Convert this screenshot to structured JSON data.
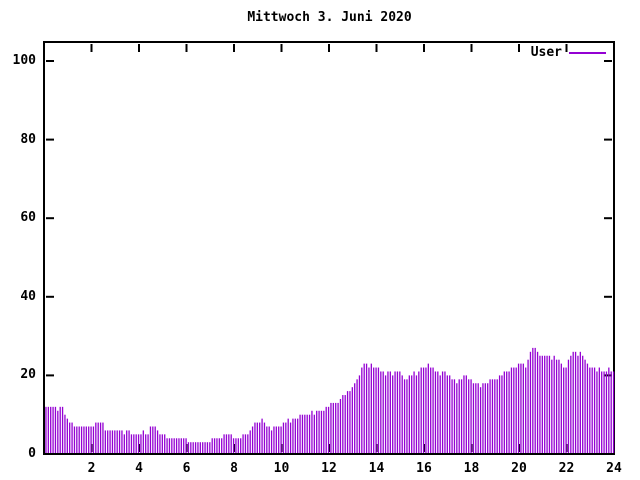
{
  "title": "Mittwoch 3. Juni 2020",
  "legend": {
    "label": "User",
    "position": "top-right"
  },
  "colors": {
    "series": "#9400D3",
    "axis": "#000000",
    "text": "#000000",
    "background": "#ffffff"
  },
  "chart_data": {
    "type": "bar",
    "style": "impulses",
    "title": "Mittwoch 3. Juni 2020",
    "xlabel": "",
    "ylabel": "",
    "xlim": [
      0,
      24
    ],
    "ylim": [
      0,
      104
    ],
    "x_ticks": [
      2,
      4,
      6,
      8,
      10,
      12,
      14,
      16,
      18,
      20,
      22,
      24
    ],
    "y_ticks": [
      0,
      20,
      40,
      60,
      80,
      100
    ],
    "grid": false,
    "legend_position": "top-right",
    "x_unit": "hour of day",
    "interval_minutes": 6,
    "series": [
      {
        "name": "User",
        "color": "#9400D3",
        "values": [
          12,
          12,
          12,
          12,
          12,
          11,
          12,
          12,
          10,
          9,
          8,
          8,
          7,
          7,
          7,
          7,
          7,
          7,
          7,
          7,
          7,
          8,
          8,
          8,
          8,
          6,
          6,
          6,
          6,
          6,
          6,
          6,
          6,
          5,
          6,
          6,
          5,
          5,
          5,
          5,
          5,
          6,
          5,
          5,
          7,
          7,
          7,
          6,
          5,
          5,
          5,
          4,
          4,
          4,
          4,
          4,
          4,
          4,
          4,
          4,
          3,
          3,
          3,
          3,
          3,
          3,
          3,
          3,
          3,
          3,
          4,
          4,
          4,
          4,
          4,
          5,
          5,
          5,
          5,
          4,
          4,
          4,
          4,
          5,
          5,
          5,
          6,
          7,
          8,
          8,
          8,
          9,
          8,
          7,
          7,
          6,
          7,
          7,
          7,
          7,
          8,
          8,
          9,
          8,
          9,
          9,
          9,
          10,
          10,
          10,
          10,
          10,
          11,
          10,
          11,
          11,
          11,
          11,
          12,
          12,
          13,
          13,
          13,
          13,
          14,
          15,
          15,
          16,
          16,
          17,
          18,
          19,
          20,
          22,
          23,
          23,
          22,
          23,
          22,
          22,
          22,
          21,
          21,
          20,
          21,
          21,
          20,
          21,
          21,
          21,
          20,
          19,
          19,
          20,
          20,
          21,
          20,
          21,
          22,
          22,
          22,
          23,
          22,
          22,
          21,
          21,
          20,
          21,
          21,
          20,
          20,
          19,
          19,
          18,
          19,
          19,
          20,
          20,
          19,
          19,
          18,
          18,
          18,
          17,
          18,
          18,
          18,
          19,
          19,
          19,
          19,
          20,
          20,
          21,
          21,
          21,
          22,
          22,
          22,
          23,
          23,
          23,
          22,
          24,
          26,
          27,
          27,
          26,
          25,
          25,
          25,
          25,
          25,
          24,
          25,
          24,
          24,
          23,
          22,
          22,
          24,
          25,
          26,
          26,
          25,
          26,
          25,
          24,
          23,
          22,
          22,
          22,
          21,
          22,
          21,
          21,
          21,
          22,
          21,
          21
        ]
      }
    ]
  }
}
